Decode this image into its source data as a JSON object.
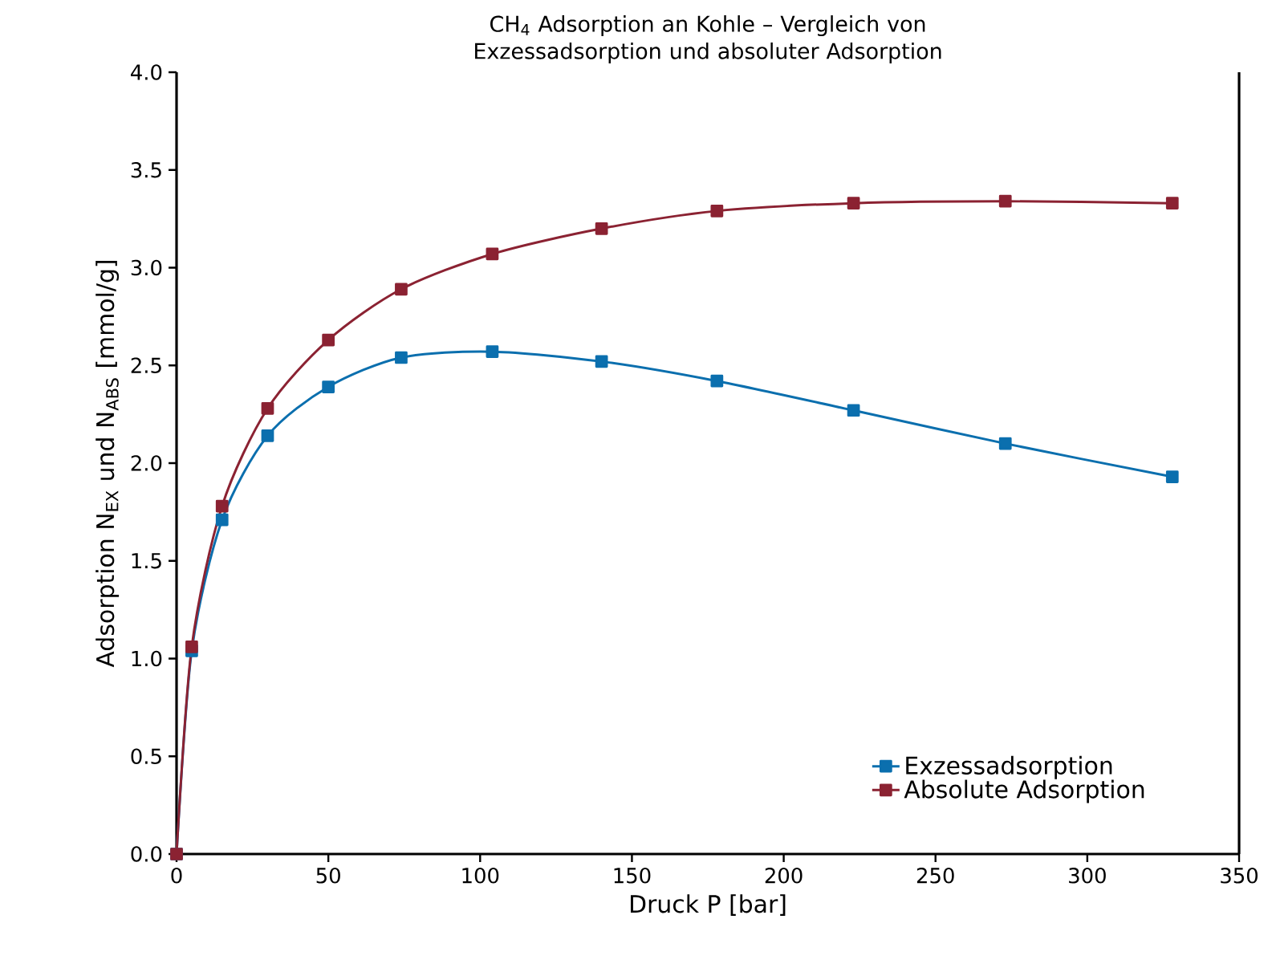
{
  "chart_data": {
    "type": "line",
    "title": "CH$_{4}$ Adsorption an Kohle – Vergleich von Exzessadsorption und absoluter Adsorption",
    "xlabel": "Druck P [bar]",
    "ylabel": "Adsorption N$_{EX}$ und N$_{ABS}$ [mmol/g]",
    "series": [
      {
        "name": "Exzessadsorption",
        "color": "#0b6fae",
        "x": [
          0,
          5,
          15,
          30,
          50,
          74,
          104,
          140,
          178,
          223,
          273,
          328
        ],
        "values": [
          0,
          1.04,
          1.71,
          2.14,
          2.39,
          2.54,
          2.57,
          2.52,
          2.42,
          2.27,
          2.1,
          1.93
        ]
      },
      {
        "name": "Absolute Adsorption",
        "color": "#8b2232",
        "x": [
          0,
          5,
          15,
          30,
          50,
          74,
          104,
          140,
          178,
          223,
          273,
          328
        ],
        "values": [
          0,
          1.06,
          1.78,
          2.28,
          2.63,
          2.89,
          3.07,
          3.2,
          3.29,
          3.33,
          3.34,
          3.33
        ]
      }
    ],
    "xlim": [
      0,
      350
    ],
    "xticks": [
      0,
      50,
      100,
      150,
      200,
      250,
      300,
      350
    ],
    "ylim": [
      0,
      4
    ],
    "yticks": [
      {
        "value": 0,
        "label": "0.0"
      },
      {
        "value": 0.5,
        "label": "0.5"
      },
      {
        "value": 1,
        "label": "1.0"
      },
      {
        "value": 1.5,
        "label": "1.5"
      },
      {
        "value": 2,
        "label": "2.0"
      },
      {
        "value": 2.5,
        "label": "2.5"
      },
      {
        "value": 3,
        "label": "3.0"
      },
      {
        "value": 3.5,
        "label": "3.5"
      },
      {
        "value": 4,
        "label": "4.0"
      }
    ],
    "grid": false,
    "legend": "bottom right",
    "marker": "square",
    "line_style": "solid"
  }
}
